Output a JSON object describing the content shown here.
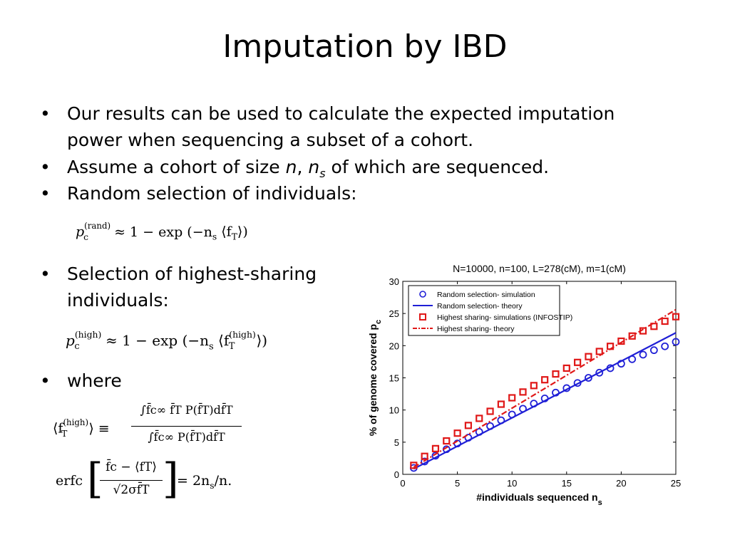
{
  "slide": {
    "title": "Imputation by IBD",
    "bullets": [
      {
        "text_a": "Our results can be used to calculate the expected imputation",
        "text_b": "power when sequencing a subset of a cohort."
      },
      {
        "pre": "Assume a cohort of size ",
        "n": "n",
        "comma": ", ",
        "ns_base": "n",
        "ns_sub": "s",
        "post": " of which are sequenced."
      },
      {
        "text": "Random selection of individuals:"
      },
      {
        "text_a": "Selection of highest-sharing",
        "text_b": "individuals:"
      },
      {
        "text": "where"
      }
    ],
    "bullet_glyph": "•",
    "eq_rand": {
      "lhs": "p",
      "sup": "(rand)",
      "sub": "c",
      "rhs": " ≈ 1 − exp (−n",
      "rhs_sub": "s",
      "rhs_end": " ⟨f",
      "rhs_sub2": "T",
      "rhs_close": "⟩)"
    },
    "eq_high": {
      "lhs": "p",
      "sup": "(high)",
      "sub": "c",
      "rhs": " ≈ 1 − exp (−n",
      "rhs_sub": "s",
      "rhs_mid": " ⟨f",
      "rhs_sup2": "(high)",
      "rhs_sub2": "T",
      "rhs_close": "⟩)"
    },
    "eq_where": {
      "lhs": "⟨f",
      "lhs_sup": "(high)",
      "lhs_sub": "T",
      "lhs_close": "⟩ ≡",
      "num": "∫f̄c∞ f̄T P(f̄T)df̄T",
      "den": "∫f̄c∞ P(f̄T)df̄T"
    },
    "eq_erfc": {
      "fn": "erfc",
      "num": "f̄c − ⟨fT⟩",
      "den": "√2σf̄T",
      "rhs": "= 2n",
      "rhs_sub": "s",
      "rhs_end": "/n."
    }
  },
  "chart_data": {
    "type": "scatter",
    "title": "N=10000, n=100, L=278(cM), m=1(cM)",
    "xlabel": "#individuals sequenced n",
    "xlabel_sub": "s",
    "ylabel": "% of genome covered p",
    "ylabel_sub": "c",
    "xlim": [
      0,
      25
    ],
    "ylim": [
      0,
      30
    ],
    "xticks": [
      0,
      5,
      10,
      15,
      20,
      25
    ],
    "yticks": [
      0,
      5,
      10,
      15,
      20,
      25,
      30
    ],
    "legend_position": "top-left",
    "colors": {
      "random": "#1f1fd6",
      "high": "#e01818"
    },
    "series": [
      {
        "name": "Random selection- simulation",
        "marker": "circle",
        "color": "#1f1fd6",
        "x": [
          1,
          2,
          3,
          4,
          5,
          6,
          7,
          8,
          9,
          10,
          11,
          12,
          13,
          14,
          15,
          16,
          17,
          18,
          19,
          20,
          21,
          22,
          23,
          24,
          25
        ],
        "values": [
          1.0,
          2.0,
          2.9,
          3.9,
          4.8,
          5.7,
          6.6,
          7.5,
          8.4,
          9.3,
          10.2,
          11.0,
          11.8,
          12.7,
          13.4,
          14.2,
          15.0,
          15.8,
          16.5,
          17.2,
          17.9,
          18.6,
          19.3,
          19.9,
          20.6
        ]
      },
      {
        "name": "Random selection- theory",
        "line": "solid",
        "color": "#1f1fd6",
        "x": [
          1,
          25
        ],
        "values": [
          0.85,
          22.0
        ]
      },
      {
        "name": "Highest sharing- simulations (INFOSTIP)",
        "marker": "square",
        "color": "#e01818",
        "x": [
          1,
          2,
          3,
          4,
          5,
          6,
          7,
          8,
          9,
          10,
          11,
          12,
          13,
          14,
          15,
          16,
          17,
          18,
          19,
          20,
          21,
          22,
          23,
          24,
          25
        ],
        "values": [
          1.4,
          2.8,
          4.0,
          5.2,
          6.4,
          7.6,
          8.7,
          9.8,
          10.9,
          11.9,
          12.8,
          13.8,
          14.7,
          15.6,
          16.5,
          17.4,
          18.3,
          19.1,
          19.9,
          20.7,
          21.5,
          22.3,
          23.0,
          23.8,
          24.5
        ]
      },
      {
        "name": "Highest sharing- theory",
        "line": "dashdot",
        "color": "#e01818",
        "x": [
          1,
          25
        ],
        "values": [
          1.1,
          25.6
        ]
      }
    ]
  }
}
